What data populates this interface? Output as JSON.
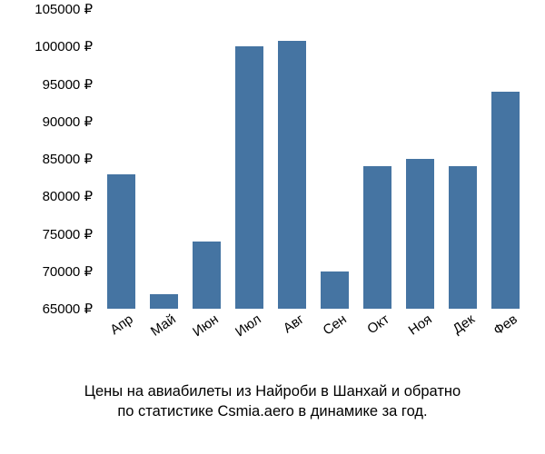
{
  "chart": {
    "type": "bar",
    "categories": [
      "Апр",
      "Май",
      "Июн",
      "Июл",
      "Авг",
      "Сен",
      "Окт",
      "Ноя",
      "Дек",
      "Фев"
    ],
    "values": [
      83000,
      67000,
      74000,
      100000,
      100800,
      70000,
      84000,
      85000,
      84000,
      94000
    ],
    "bar_color": "#4574a2",
    "background_color": "#ffffff",
    "text_color": "#000000",
    "ylim_min": 65000,
    "ylim_max": 105000,
    "ytick_step": 5000,
    "ytick_suffix": " ₽",
    "yticks": [
      "65000 ₽",
      "70000 ₽",
      "75000 ₽",
      "80000 ₽",
      "85000 ₽",
      "90000 ₽",
      "95000 ₽",
      "100000 ₽",
      "105000 ₽"
    ],
    "label_fontsize": 15,
    "caption_fontsize": 16,
    "x_label_rotation_deg": -35,
    "bar_width_ratio": 0.66
  },
  "caption": {
    "line1": "Цены на авиабилеты из Найроби в Шанхай и обратно",
    "line2": "по статистике Csmia.aero в динамике за год."
  }
}
